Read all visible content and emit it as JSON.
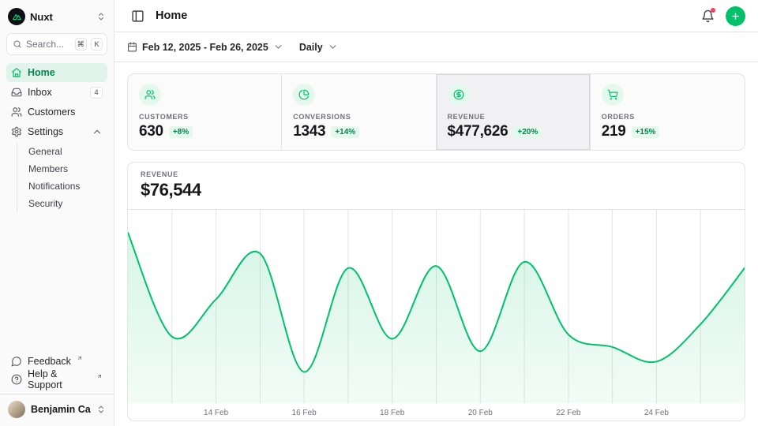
{
  "colors": {
    "accent": "#00c16a",
    "accent_text": "#00864f",
    "accent_soft": "#e4f8ee",
    "grid": "#e4e4e7",
    "muted": "#71717a",
    "notification_dot": "#f43f5e",
    "logo_green": "#00dc82"
  },
  "sidebar": {
    "workspace": "Nuxt",
    "search": {
      "placeholder": "Search...",
      "kbd": [
        "⌘",
        "K"
      ]
    },
    "nav": [
      {
        "label": "Home"
      },
      {
        "label": "Inbox",
        "badge": "4"
      },
      {
        "label": "Customers"
      },
      {
        "label": "Settings",
        "children": [
          "General",
          "Members",
          "Notifications",
          "Security"
        ]
      }
    ],
    "links": [
      {
        "label": "Feedback"
      },
      {
        "label": "Help & Support"
      }
    ],
    "user": {
      "name": "Benjamin Canac"
    }
  },
  "header": {
    "title": "Home"
  },
  "toolbar": {
    "date_range": "Feb 12, 2025 - Feb 26, 2025",
    "period": "Daily"
  },
  "stats": [
    {
      "label": "CUSTOMERS",
      "value": "630",
      "delta": "+8%"
    },
    {
      "label": "CONVERSIONS",
      "value": "1343",
      "delta": "+14%"
    },
    {
      "label": "REVENUE",
      "value": "$477,626",
      "delta": "+20%"
    },
    {
      "label": "ORDERS",
      "value": "219",
      "delta": "+15%"
    }
  ],
  "chart_card": {
    "label": "REVENUE",
    "value": "$76,544"
  },
  "chart_data": {
    "type": "area",
    "title": "Revenue, daily, Feb 12 2025 - Feb 26 2025",
    "xlabel": "",
    "ylabel": "Revenue ($)",
    "x": [
      "12 Feb",
      "13 Feb",
      "14 Feb",
      "15 Feb",
      "16 Feb",
      "17 Feb",
      "18 Feb",
      "19 Feb",
      "20 Feb",
      "21 Feb",
      "22 Feb",
      "23 Feb",
      "24 Feb",
      "25 Feb",
      "26 Feb"
    ],
    "values": [
      82000,
      32000,
      50000,
      72000,
      15000,
      65000,
      31000,
      66000,
      25000,
      68000,
      33000,
      27000,
      20000,
      38000,
      65000
    ],
    "ylim": [
      0,
      90000
    ],
    "ticks": [
      {
        "index": 2,
        "label": "14 Feb"
      },
      {
        "index": 4,
        "label": "16 Feb"
      },
      {
        "index": 6,
        "label": "18 Feb"
      },
      {
        "index": 8,
        "label": "20 Feb"
      },
      {
        "index": 10,
        "label": "22 Feb"
      },
      {
        "index": 12,
        "label": "24 Feb"
      }
    ],
    "grid": "vertical-daily-lines",
    "legend": false
  }
}
